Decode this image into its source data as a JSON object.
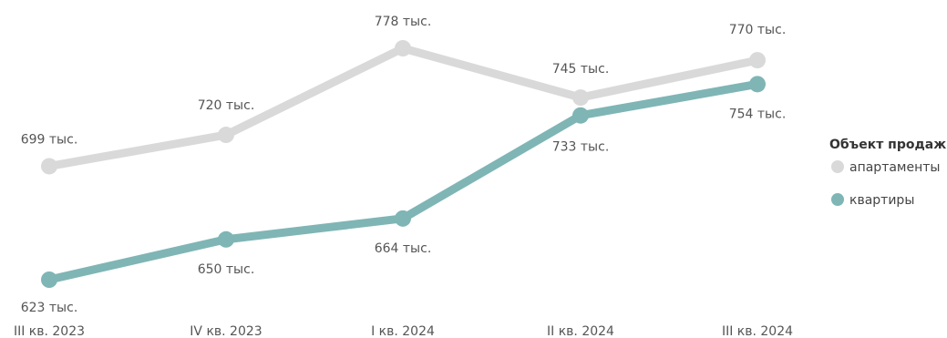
{
  "chart_data": {
    "type": "line",
    "categories": [
      "III кв. 2023",
      "IV кв. 2023",
      "I кв. 2024",
      "II кв. 2024",
      "III кв. 2024"
    ],
    "series": [
      {
        "name": "апартаменты",
        "color": "#d9d9d9",
        "values": [
          699,
          720,
          778,
          745,
          770
        ],
        "labels": [
          "699 тыс.",
          "720 тыс.",
          "778 тыс.",
          "745 тыс.",
          "770 тыс."
        ]
      },
      {
        "name": "квартиры",
        "color": "#7fb5b5",
        "values": [
          623,
          650,
          664,
          733,
          754
        ],
        "labels": [
          "623 тыс.",
          "650 тыс.",
          "664 тыс.",
          "733 тыс.",
          "754 тыс."
        ]
      }
    ],
    "legend_title": "Объект продаж",
    "legend_position": "right",
    "grid": false
  }
}
